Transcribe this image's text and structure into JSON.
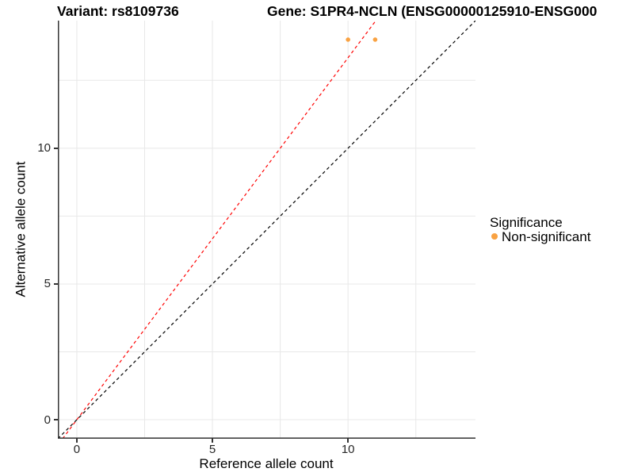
{
  "header": {
    "variant_title": "Variant: rs8109736",
    "gene_title": "Gene: S1PR4-NCLN (ENSG00000125910-ENSG000"
  },
  "legend": {
    "title": "Significance",
    "items": [
      {
        "label": "Non-significant",
        "color": "#F9A242"
      }
    ]
  },
  "chart_data": {
    "type": "scatter",
    "title_left": "Variant: rs8109736",
    "title_right": "Gene: S1PR4-NCLN (ENSG00000125910-ENSG000",
    "xlabel": "Reference allele count",
    "ylabel": "Alternative allele count",
    "xlim": [
      -0.7,
      14.7
    ],
    "ylim": [
      -0.7,
      14.7
    ],
    "x_ticks": [
      0,
      5,
      10
    ],
    "y_ticks": [
      0,
      5,
      10
    ],
    "grid_interval": 2.5,
    "grid_on": true,
    "grid_color": "#E8E8E8",
    "axis_color": "#333333",
    "background": "#FFFFFF",
    "point_color": "#F9A242",
    "point_series": "Non-significant",
    "points": [
      {
        "x": 10,
        "y": 14
      },
      {
        "x": 11,
        "y": 14
      }
    ],
    "lines": [
      {
        "name": "allelic-ratio-line",
        "slope": 1.3333,
        "intercept": 0,
        "color": "#FF0000",
        "style": "dashed"
      },
      {
        "name": "identity-line",
        "slope": 1.0,
        "intercept": 0,
        "color": "#000000",
        "style": "dashed"
      }
    ],
    "legend_title": "Significance",
    "legend_position": "right"
  }
}
